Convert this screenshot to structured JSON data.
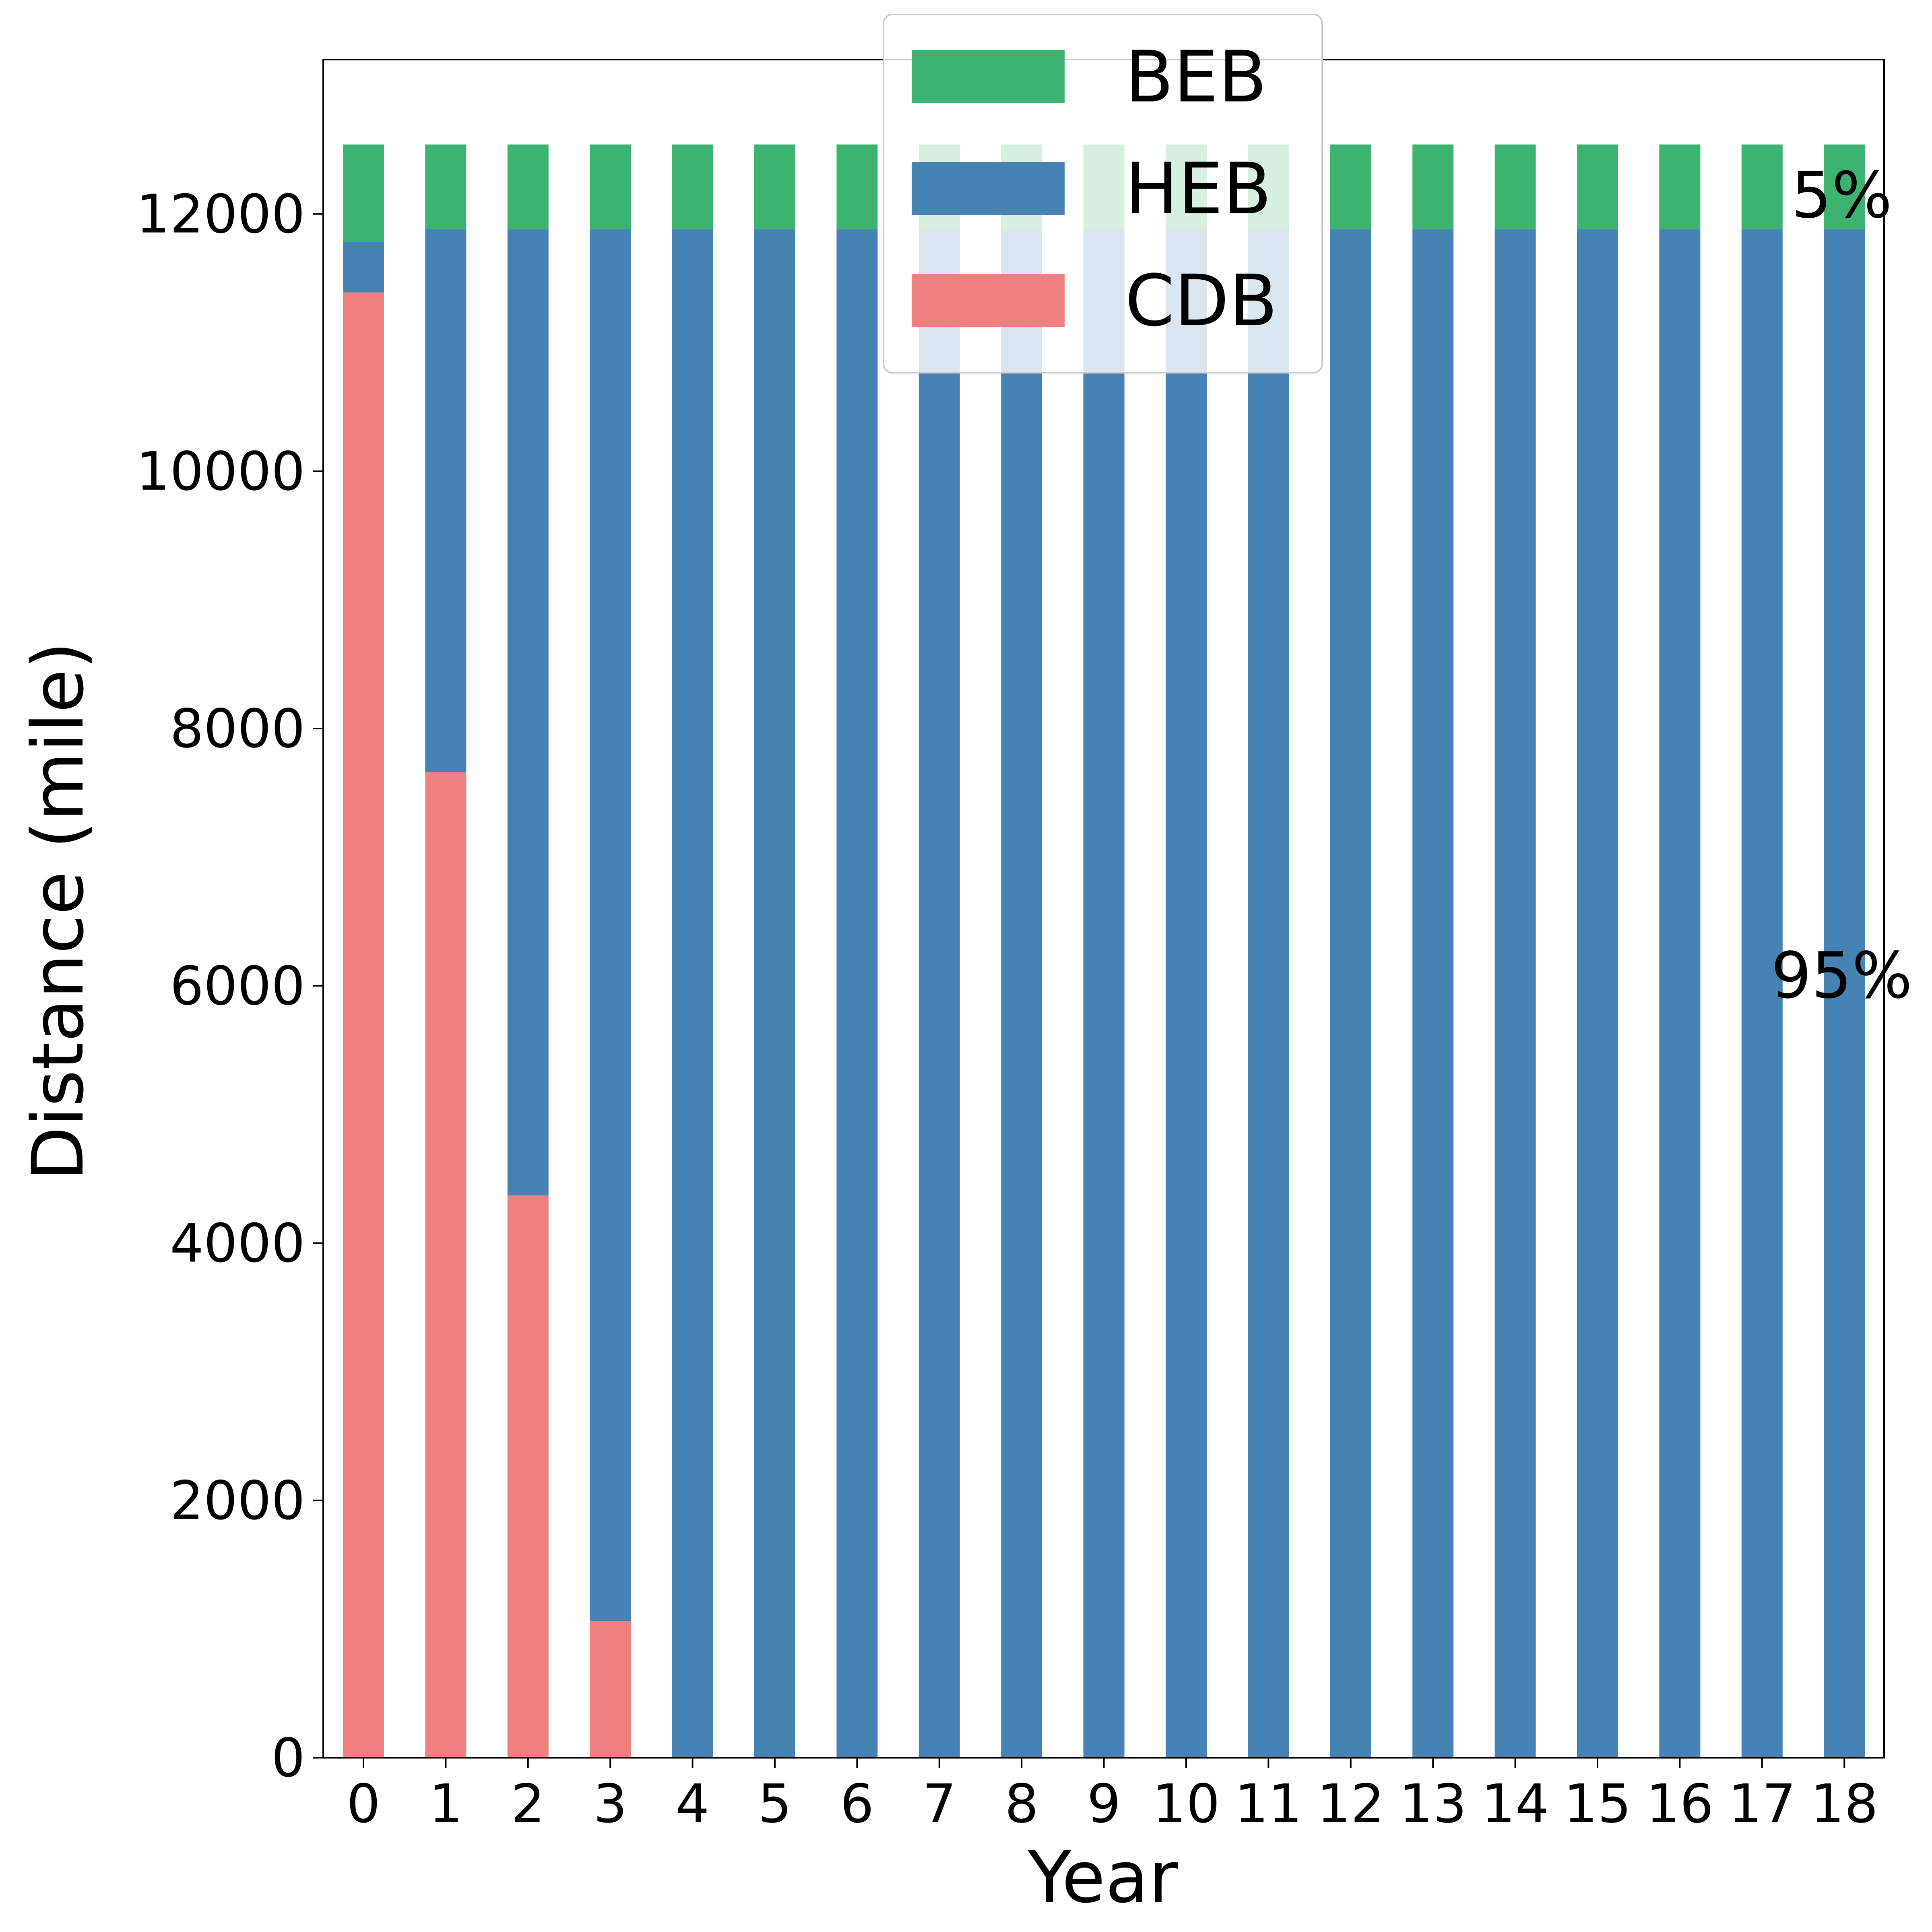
{
  "chart_data": {
    "type": "bar",
    "stacked": true,
    "xlabel": "Year",
    "ylabel": "Distance (mile)",
    "ylim": [
      0,
      13200
    ],
    "yticks": [
      0,
      2000,
      4000,
      6000,
      8000,
      10000,
      12000
    ],
    "grid": false,
    "legend_position": "top-center",
    "categories": [
      "0",
      "1",
      "2",
      "3",
      "4",
      "5",
      "6",
      "7",
      "8",
      "9",
      "10",
      "11",
      "12",
      "13",
      "14",
      "15",
      "16",
      "17",
      "18"
    ],
    "series": [
      {
        "name": "CDB",
        "color": "#F08080",
        "values": [
          11390,
          7660,
          4370,
          1060,
          0,
          0,
          0,
          0,
          0,
          0,
          0,
          0,
          0,
          0,
          0,
          0,
          0,
          0,
          0
        ]
      },
      {
        "name": "HEB",
        "color": "#4682B4",
        "values": [
          390,
          4220,
          7510,
          10820,
          11880,
          11880,
          11880,
          11880,
          11880,
          11880,
          11880,
          11880,
          11880,
          11880,
          11880,
          11880,
          11880,
          11880,
          11880
        ]
      },
      {
        "name": "BEB",
        "color": "#3CB371",
        "values": [
          760,
          660,
          660,
          660,
          660,
          660,
          660,
          660,
          660,
          660,
          660,
          660,
          660,
          660,
          660,
          660,
          660,
          660,
          660
        ]
      }
    ],
    "legend_order": [
      "BEB",
      "HEB",
      "CDB"
    ],
    "annotations": [
      {
        "text": "5%",
        "target": "BEB"
      },
      {
        "text": "95%",
        "target": "HEB"
      }
    ]
  }
}
